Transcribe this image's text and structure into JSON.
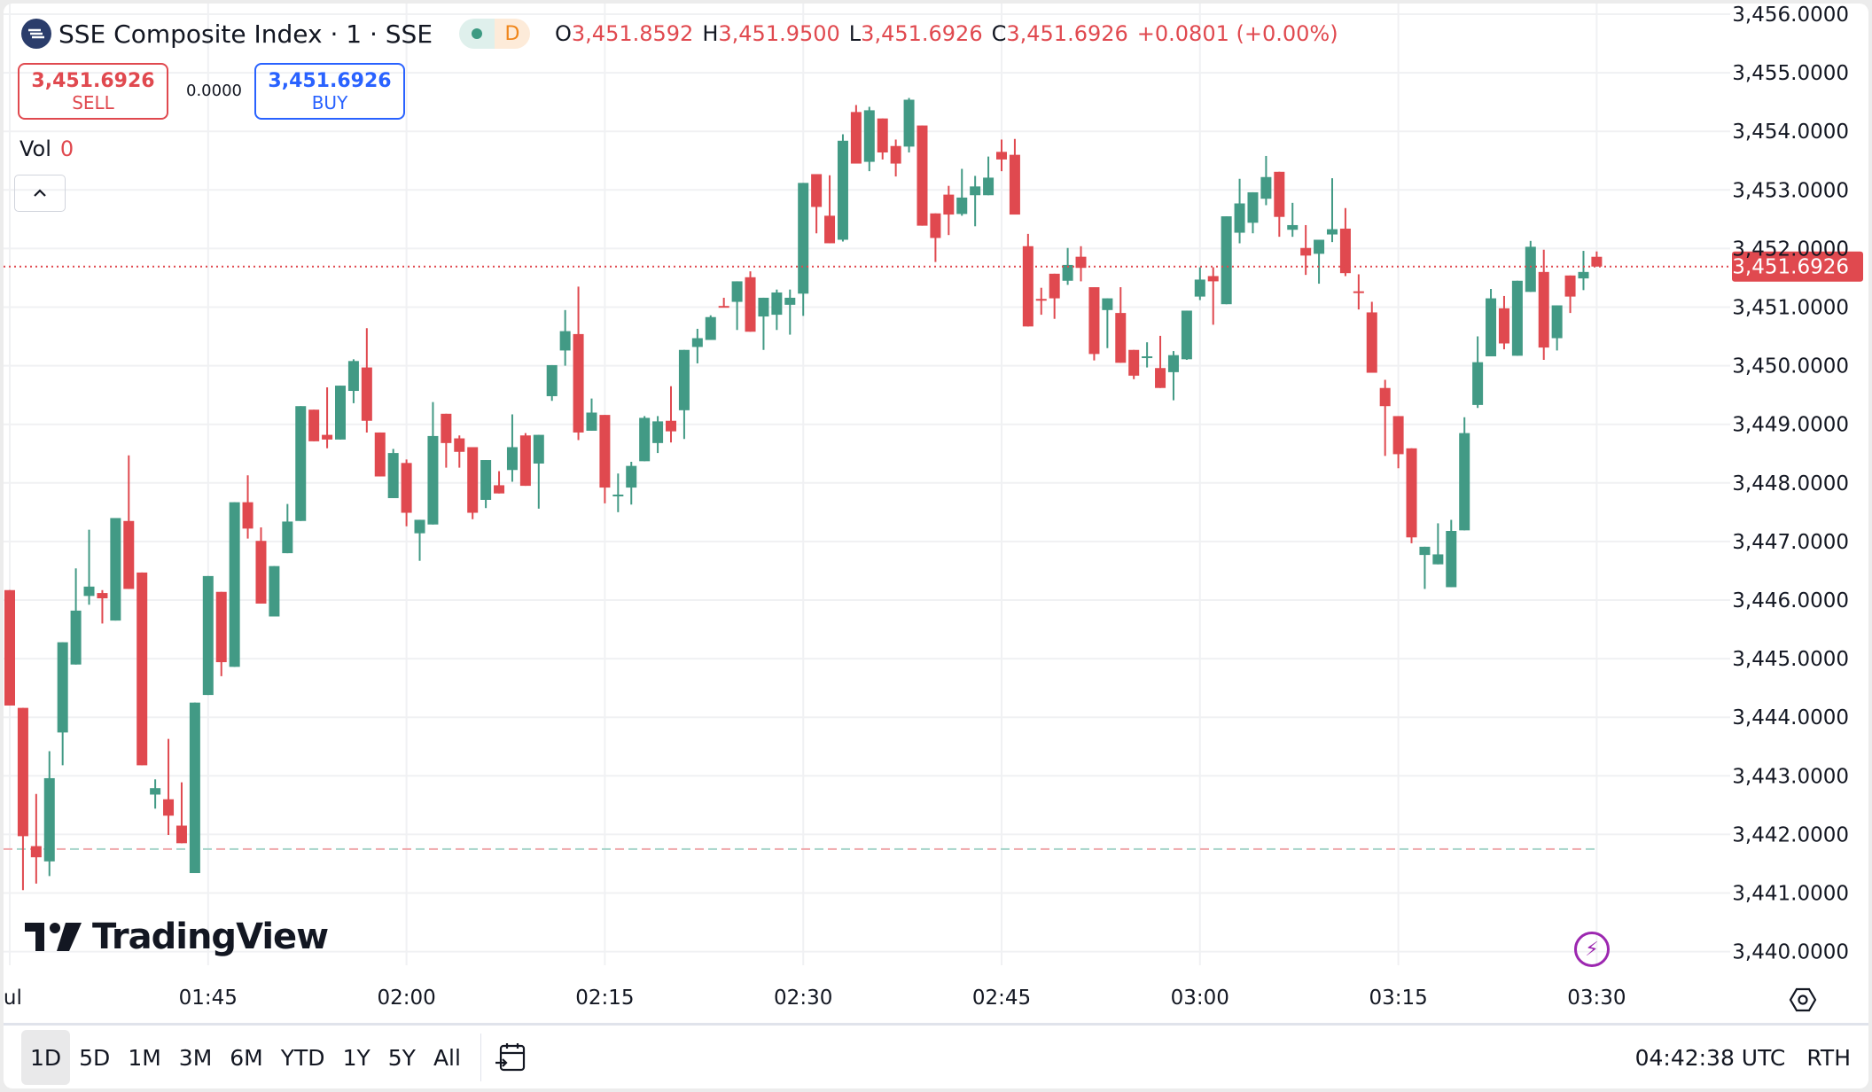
{
  "header": {
    "title": "SSE Composite Index · 1 · SSE",
    "market_status_letter": "D",
    "ohlc": [
      {
        "key": "O",
        "value": "3,451.8592"
      },
      {
        "key": "H",
        "value": "3,451.9500"
      },
      {
        "key": "L",
        "value": "3,451.6926"
      },
      {
        "key": "C",
        "value": "3,451.6926"
      },
      {
        "key": "",
        "value": "+0.0801 (+0.00%)"
      }
    ]
  },
  "trade": {
    "sell_price": "3,451.6926",
    "sell_label": "SELL",
    "spread": "0.0000",
    "buy_price": "3,451.6926",
    "buy_label": "BUY"
  },
  "volume": {
    "label": "Vol",
    "value": "0"
  },
  "watermark": "TradingView",
  "toolbar": {
    "timeframes": [
      "1D",
      "5D",
      "1M",
      "3M",
      "6M",
      "YTD",
      "1Y",
      "5Y",
      "All"
    ],
    "active_timeframe": "1D",
    "clock": "04:42:38 UTC",
    "session": "RTH"
  },
  "colors": {
    "up": "#429a85",
    "down": "#e0494f",
    "accent_buy": "#2962ff",
    "grid": "#f0f1f3"
  },
  "chart_data": {
    "type": "candlestick",
    "last_price": 3451.6926,
    "last_price_label": "3,451.6926",
    "reference_line": 3441.75,
    "ylim": [
      3440,
      3456
    ],
    "y_ticks": [
      "3,440.0000",
      "3,441.0000",
      "3,442.0000",
      "3,443.0000",
      "3,444.0000",
      "3,445.0000",
      "3,446.0000",
      "3,447.0000",
      "3,448.0000",
      "3,449.0000",
      "3,450.0000",
      "3,451.0000",
      "3,452.0000",
      "3,453.0000",
      "3,454.0000",
      "3,455.0000",
      "3,456.0000"
    ],
    "x_ticks": [
      {
        "t": "01:30",
        "label": "Jul"
      },
      {
        "t": "01:45",
        "label": "01:45"
      },
      {
        "t": "02:00",
        "label": "02:00"
      },
      {
        "t": "02:15",
        "label": "02:15"
      },
      {
        "t": "02:30",
        "label": "02:30"
      },
      {
        "t": "02:45",
        "label": "02:45"
      },
      {
        "t": "03:00",
        "label": "03:00"
      },
      {
        "t": "03:15",
        "label": "03:15"
      },
      {
        "t": "03:30",
        "label": "03:30"
      }
    ],
    "grid": true,
    "columns": [
      "time",
      "open",
      "high",
      "low",
      "close"
    ],
    "candles": [
      [
        "01:30",
        3446.17,
        3446.17,
        3444.2,
        3444.2
      ],
      [
        "01:31",
        3444.16,
        3444.16,
        3441.05,
        3441.97
      ],
      [
        "01:32",
        3441.8,
        3442.69,
        3441.16,
        3441.61
      ],
      [
        "01:33",
        3441.54,
        3443.42,
        3441.29,
        3442.96
      ],
      [
        "01:34",
        3443.74,
        3445.28,
        3443.18,
        3445.28
      ],
      [
        "01:35",
        3444.9,
        3446.54,
        3444.9,
        3445.82
      ],
      [
        "01:36",
        3446.07,
        3447.2,
        3445.92,
        3446.23
      ],
      [
        "01:37",
        3446.12,
        3446.17,
        3445.6,
        3446.03
      ],
      [
        "01:38",
        3445.65,
        3447.4,
        3445.65,
        3447.4
      ],
      [
        "01:39",
        3447.35,
        3448.47,
        3446.19,
        3446.19
      ],
      [
        "01:40",
        3446.47,
        3446.47,
        3443.18,
        3443.18
      ],
      [
        "01:41",
        3442.68,
        3442.94,
        3442.44,
        3442.79
      ],
      [
        "01:42",
        3442.6,
        3443.63,
        3441.99,
        3442.32
      ],
      [
        "01:43",
        3442.15,
        3442.89,
        3441.85,
        3441.85
      ],
      [
        "01:44",
        3441.34,
        3444.25,
        3441.34,
        3444.25
      ],
      [
        "01:45",
        3444.38,
        3446.41,
        3444.38,
        3446.41
      ],
      [
        "01:46",
        3446.14,
        3446.14,
        3444.7,
        3444.94
      ],
      [
        "01:47",
        3444.86,
        3447.67,
        3444.86,
        3447.67
      ],
      [
        "01:48",
        3447.67,
        3448.13,
        3447.05,
        3447.22
      ],
      [
        "01:49",
        3447.01,
        3447.24,
        3445.94,
        3445.94
      ],
      [
        "01:50",
        3445.72,
        3446.58,
        3445.72,
        3446.58
      ],
      [
        "01:51",
        3446.8,
        3447.64,
        3446.8,
        3447.34
      ],
      [
        "01:52",
        3447.35,
        3449.31,
        3447.35,
        3449.31
      ],
      [
        "01:53",
        3449.25,
        3449.25,
        3448.71,
        3448.71
      ],
      [
        "01:54",
        3448.82,
        3449.63,
        3448.59,
        3448.74
      ],
      [
        "01:55",
        3448.74,
        3449.66,
        3448.74,
        3449.66
      ],
      [
        "01:56",
        3449.57,
        3450.11,
        3449.36,
        3450.08
      ],
      [
        "01:57",
        3449.97,
        3450.64,
        3448.86,
        3449.06
      ],
      [
        "01:58",
        3448.86,
        3448.86,
        3448.11,
        3448.11
      ],
      [
        "01:59",
        3447.74,
        3448.58,
        3447.74,
        3448.51
      ],
      [
        "02:00",
        3448.34,
        3448.4,
        3447.26,
        3447.49
      ],
      [
        "02:01",
        3447.14,
        3447.37,
        3446.67,
        3447.37
      ],
      [
        "02:02",
        3447.29,
        3449.38,
        3447.29,
        3448.8
      ],
      [
        "02:03",
        3449.18,
        3449.18,
        3448.26,
        3448.68
      ],
      [
        "02:04",
        3448.76,
        3448.81,
        3448.26,
        3448.53
      ],
      [
        "02:05",
        3448.61,
        3448.61,
        3447.38,
        3447.49
      ],
      [
        "02:06",
        3447.71,
        3448.39,
        3447.57,
        3448.39
      ],
      [
        "02:07",
        3447.96,
        3448.2,
        3447.82,
        3447.82
      ],
      [
        "02:08",
        3448.22,
        3449.17,
        3448.02,
        3448.61
      ],
      [
        "02:09",
        3448.81,
        3448.85,
        3447.95,
        3447.95
      ],
      [
        "02:10",
        3448.33,
        3448.82,
        3447.56,
        3448.82
      ],
      [
        "02:11",
        3449.48,
        3450.01,
        3449.4,
        3450.01
      ],
      [
        "02:12",
        3450.26,
        3450.95,
        3450.0,
        3450.59
      ],
      [
        "02:13",
        3450.54,
        3451.35,
        3448.73,
        3448.86
      ],
      [
        "02:14",
        3448.89,
        3449.44,
        3448.89,
        3449.2
      ],
      [
        "02:15",
        3449.16,
        3449.16,
        3447.65,
        3447.92
      ],
      [
        "02:16",
        3447.79,
        3448.16,
        3447.5,
        3447.8
      ],
      [
        "02:17",
        3447.92,
        3448.36,
        3447.63,
        3448.29
      ],
      [
        "02:18",
        3448.37,
        3449.14,
        3448.37,
        3449.11
      ],
      [
        "02:19",
        3448.68,
        3449.14,
        3448.51,
        3449.05
      ],
      [
        "02:20",
        3449.06,
        3449.65,
        3448.69,
        3448.88
      ],
      [
        "02:21",
        3449.24,
        3450.27,
        3448.75,
        3450.27
      ],
      [
        "02:22",
        3450.32,
        3450.63,
        3450.04,
        3450.47
      ],
      [
        "02:23",
        3450.44,
        3450.86,
        3450.44,
        3450.83
      ],
      [
        "02:24",
        3451.02,
        3451.16,
        3451.0,
        3451.0
      ],
      [
        "02:25",
        3451.09,
        3451.44,
        3450.61,
        3451.44
      ],
      [
        "02:26",
        3451.51,
        3451.61,
        3450.58,
        3450.58
      ],
      [
        "02:27",
        3450.84,
        3451.16,
        3450.27,
        3451.16
      ],
      [
        "02:28",
        3450.87,
        3451.3,
        3450.61,
        3451.25
      ],
      [
        "02:29",
        3451.04,
        3451.3,
        3450.53,
        3451.16
      ],
      [
        "02:30",
        3451.23,
        3453.12,
        3450.85,
        3453.12
      ],
      [
        "02:31",
        3453.27,
        3453.27,
        3452.26,
        3452.71
      ],
      [
        "02:32",
        3452.56,
        3453.25,
        3452.09,
        3452.09
      ],
      [
        "02:33",
        3452.15,
        3453.95,
        3452.12,
        3453.84
      ],
      [
        "02:34",
        3454.33,
        3454.45,
        3453.45,
        3453.45
      ],
      [
        "02:35",
        3453.48,
        3454.42,
        3453.32,
        3454.36
      ],
      [
        "02:36",
        3454.22,
        3454.22,
        3453.52,
        3453.64
      ],
      [
        "02:37",
        3453.75,
        3453.86,
        3453.23,
        3453.45
      ],
      [
        "02:38",
        3453.74,
        3454.57,
        3453.64,
        3454.54
      ],
      [
        "02:39",
        3454.1,
        3454.1,
        3452.39,
        3452.39
      ],
      [
        "02:40",
        3452.6,
        3452.6,
        3451.77,
        3452.18
      ],
      [
        "02:41",
        3452.92,
        3453.07,
        3452.23,
        3452.58
      ],
      [
        "02:42",
        3452.59,
        3453.36,
        3452.56,
        3452.87
      ],
      [
        "02:43",
        3452.91,
        3453.24,
        3452.38,
        3453.06
      ],
      [
        "02:44",
        3452.91,
        3453.57,
        3452.91,
        3453.21
      ],
      [
        "02:45",
        3453.65,
        3453.86,
        3453.32,
        3453.52
      ],
      [
        "02:46",
        3453.6,
        3453.87,
        3452.58,
        3452.58
      ],
      [
        "02:47",
        3452.04,
        3452.25,
        3450.67,
        3450.67
      ],
      [
        "02:48",
        3451.14,
        3451.33,
        3450.87,
        3451.13
      ],
      [
        "02:49",
        3451.57,
        3451.57,
        3450.8,
        3451.15
      ],
      [
        "02:50",
        3451.45,
        3452.01,
        3451.38,
        3451.72
      ],
      [
        "02:51",
        3451.86,
        3452.04,
        3451.44,
        3451.67
      ],
      [
        "02:52",
        3451.34,
        3451.34,
        3450.09,
        3450.2
      ],
      [
        "02:53",
        3450.95,
        3451.15,
        3450.3,
        3451.15
      ],
      [
        "02:54",
        3450.9,
        3451.34,
        3450.05,
        3450.05
      ],
      [
        "02:55",
        3450.27,
        3450.27,
        3449.77,
        3449.83
      ],
      [
        "02:56",
        3450.15,
        3450.4,
        3449.97,
        3450.16
      ],
      [
        "02:57",
        3449.96,
        3450.51,
        3449.62,
        3449.62
      ],
      [
        "02:58",
        3449.89,
        3450.25,
        3449.41,
        3450.18
      ],
      [
        "02:59",
        3450.11,
        3450.94,
        3450.1,
        3450.94
      ],
      [
        "03:00",
        3451.18,
        3451.68,
        3451.12,
        3451.47
      ],
      [
        "03:01",
        3451.53,
        3451.68,
        3450.7,
        3451.44
      ],
      [
        "03:02",
        3451.05,
        3452.55,
        3451.05,
        3452.55
      ],
      [
        "03:03",
        3452.27,
        3453.19,
        3452.09,
        3452.77
      ],
      [
        "03:04",
        3452.44,
        3452.96,
        3452.26,
        3452.96
      ],
      [
        "03:05",
        3452.85,
        3453.58,
        3452.74,
        3453.22
      ],
      [
        "03:06",
        3453.31,
        3453.31,
        3452.2,
        3452.54
      ],
      [
        "03:07",
        3452.32,
        3452.78,
        3452.2,
        3452.4
      ],
      [
        "03:08",
        3452.01,
        3452.4,
        3451.55,
        3451.88
      ],
      [
        "03:09",
        3451.91,
        3452.15,
        3451.4,
        3452.15
      ],
      [
        "03:10",
        3452.24,
        3453.2,
        3452.11,
        3452.33
      ],
      [
        "03:11",
        3452.34,
        3452.69,
        3451.53,
        3451.58
      ],
      [
        "03:12",
        3451.27,
        3451.56,
        3450.96,
        3451.26
      ],
      [
        "03:13",
        3450.91,
        3451.09,
        3449.88,
        3449.88
      ],
      [
        "03:14",
        3449.62,
        3449.76,
        3448.46,
        3449.31
      ],
      [
        "03:15",
        3449.14,
        3449.14,
        3448.25,
        3448.49
      ],
      [
        "03:16",
        3448.59,
        3448.59,
        3446.97,
        3447.07
      ],
      [
        "03:17",
        3446.77,
        3446.91,
        3446.19,
        3446.91
      ],
      [
        "03:18",
        3446.61,
        3447.31,
        3446.61,
        3446.78
      ],
      [
        "03:19",
        3446.22,
        3447.37,
        3446.22,
        3447.18
      ],
      [
        "03:20",
        3447.19,
        3449.12,
        3447.19,
        3448.85
      ],
      [
        "03:21",
        3449.33,
        3450.5,
        3449.28,
        3450.06
      ],
      [
        "03:22",
        3450.16,
        3451.31,
        3450.16,
        3451.15
      ],
      [
        "03:23",
        3450.98,
        3451.19,
        3450.28,
        3450.38
      ],
      [
        "03:24",
        3450.17,
        3451.45,
        3450.17,
        3451.45
      ],
      [
        "03:25",
        3451.26,
        3452.13,
        3451.26,
        3452.03
      ],
      [
        "03:26",
        3451.6,
        3451.98,
        3450.1,
        3450.31
      ],
      [
        "03:27",
        3450.47,
        3451.03,
        3450.26,
        3451.03
      ],
      [
        "03:28",
        3451.54,
        3451.54,
        3450.9,
        3451.18
      ],
      [
        "03:29",
        3451.49,
        3451.96,
        3451.29,
        3451.6
      ],
      [
        "03:30",
        3451.8592,
        3451.95,
        3451.6926,
        3451.6926
      ]
    ]
  }
}
